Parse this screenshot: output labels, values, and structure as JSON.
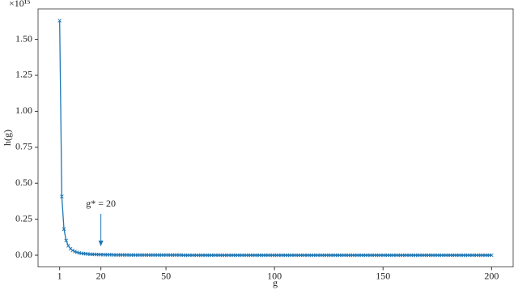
{
  "chart_data": {
    "type": "line",
    "xlabel": "g",
    "ylabel": "h(g)",
    "offset_label": "×10¹⁵",
    "annotation": {
      "text": "g* = 20",
      "x": 20
    },
    "x": [
      1,
      2,
      3,
      4,
      5,
      6,
      7,
      8,
      9,
      10,
      11,
      12,
      13,
      14,
      15,
      16,
      17,
      18,
      19,
      20,
      21,
      22,
      23,
      24,
      25,
      26,
      27,
      28,
      29,
      30,
      31,
      32,
      33,
      34,
      35,
      36,
      37,
      38,
      39,
      40,
      41,
      42,
      43,
      44,
      45,
      46,
      47,
      48,
      49,
      50,
      51,
      52,
      53,
      54,
      55,
      56,
      57,
      58,
      59,
      60,
      61,
      62,
      63,
      64,
      65,
      66,
      67,
      68,
      69,
      70,
      71,
      72,
      73,
      74,
      75,
      76,
      77,
      78,
      79,
      80,
      81,
      82,
      83,
      84,
      85,
      86,
      87,
      88,
      89,
      90,
      91,
      92,
      93,
      94,
      95,
      96,
      97,
      98,
      99,
      100,
      101,
      102,
      103,
      104,
      105,
      106,
      107,
      108,
      109,
      110,
      111,
      112,
      113,
      114,
      115,
      116,
      117,
      118,
      119,
      120,
      121,
      122,
      123,
      124,
      125,
      126,
      127,
      128,
      129,
      130,
      131,
      132,
      133,
      134,
      135,
      136,
      137,
      138,
      139,
      140,
      141,
      142,
      143,
      144,
      145,
      146,
      147,
      148,
      149,
      150,
      151,
      152,
      153,
      154,
      155,
      156,
      157,
      158,
      159,
      160,
      161,
      162,
      163,
      164,
      165,
      166,
      167,
      168,
      169,
      170,
      171,
      172,
      173,
      174,
      175,
      176,
      177,
      178,
      179,
      180,
      181,
      182,
      183,
      184,
      185,
      186,
      187,
      188,
      189,
      190,
      191,
      192,
      193,
      194,
      195,
      196,
      197,
      198,
      199,
      200
    ],
    "series": [
      {
        "color": "#1f77b4",
        "values": [
          1.63,
          0.408,
          0.181,
          0.102,
          0.065,
          0.045,
          0.033,
          0.025,
          0.02,
          0.016,
          0.013,
          0.011,
          0.01,
          0.008,
          0.007,
          0.006,
          0.006,
          0.005,
          0.005,
          0.004,
          0.004,
          0.003,
          0.003,
          0.003,
          0.003,
          0.002,
          0.002,
          0.002,
          0.002,
          0.002,
          0.002,
          0.002,
          0.001,
          0.001,
          0.001,
          0.001,
          0.001,
          0.001,
          0.001,
          0.001,
          0.001,
          0.001,
          0.001,
          0.001,
          0.001,
          0.001,
          0.001,
          0.001,
          0.001,
          0.001,
          0.001,
          0.001,
          0.001,
          0.001,
          0.001,
          0.001,
          0.001,
          0,
          0,
          0,
          0,
          0,
          0,
          0,
          0,
          0,
          0,
          0,
          0,
          0,
          0,
          0,
          0,
          0,
          0,
          0,
          0,
          0,
          0,
          0,
          0,
          0,
          0,
          0,
          0,
          0,
          0,
          0,
          0,
          0,
          0,
          0,
          0,
          0,
          0,
          0,
          0,
          0,
          0,
          0,
          0,
          0,
          0,
          0,
          0,
          0,
          0,
          0,
          0,
          0,
          0,
          0,
          0,
          0,
          0,
          0,
          0,
          0,
          0,
          0,
          0,
          0,
          0,
          0,
          0,
          0,
          0,
          0,
          0,
          0,
          0,
          0,
          0,
          0,
          0,
          0,
          0,
          0,
          0,
          0,
          0,
          0,
          0,
          0,
          0,
          0,
          0,
          0,
          0,
          0,
          0,
          0,
          0,
          0,
          0,
          0,
          0,
          0,
          0,
          0,
          0,
          0,
          0,
          0,
          0,
          0,
          0,
          0,
          0,
          0,
          0,
          0,
          0,
          0,
          0,
          0,
          0,
          0,
          0,
          0,
          0,
          0,
          0,
          0,
          0,
          0,
          0,
          0,
          0,
          0,
          0,
          0,
          0,
          0,
          0,
          0,
          0,
          0,
          0,
          0
        ]
      }
    ],
    "xlim": [
      -8.95,
      209.95
    ],
    "xticks": [
      1,
      20,
      50,
      100,
      150,
      200
    ],
    "ylim": [
      -0.0815,
      1.7115
    ],
    "yticks": [
      {
        "value": 0,
        "label": "0.00"
      },
      {
        "value": 0.25,
        "label": "0.25"
      },
      {
        "value": 0.5,
        "label": "0.50"
      },
      {
        "value": 0.75,
        "label": "0.75"
      },
      {
        "value": 1,
        "label": "1.00"
      },
      {
        "value": 1.25,
        "label": "1.25"
      },
      {
        "value": 1.5,
        "label": "1.50"
      }
    ]
  }
}
